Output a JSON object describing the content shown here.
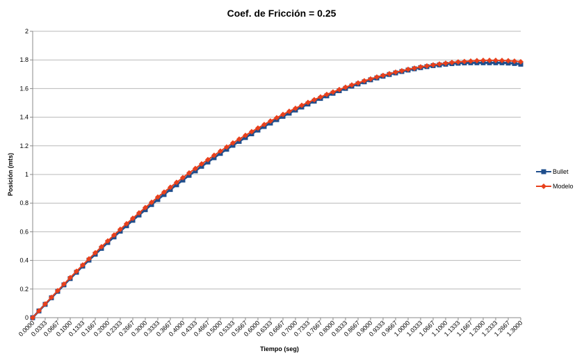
{
  "chart_data": {
    "type": "line",
    "title": "Coef. de Fricción = 0.25",
    "xlabel": "Tiempo (seg)",
    "ylabel": "Posición (mts)",
    "ylim": [
      0,
      2
    ],
    "yticks": [
      "0",
      "0.2",
      "0.4",
      "0.6",
      "0.8",
      "1",
      "1.2",
      "1.4",
      "1.6",
      "1.8",
      "2"
    ],
    "grid": "horizontal",
    "legend_position": "right",
    "x": [
      "0.0000",
      "0.0167",
      "0.0333",
      "0.0500",
      "0.0667",
      "0.0833",
      "0.1000",
      "0.1167",
      "0.1333",
      "0.1500",
      "0.1667",
      "0.1833",
      "0.2000",
      "0.2167",
      "0.2333",
      "0.2500",
      "0.2667",
      "0.2833",
      "0.3000",
      "0.3167",
      "0.3333",
      "0.3500",
      "0.3667",
      "0.3833",
      "0.4000",
      "0.4167",
      "0.4333",
      "0.4500",
      "0.4667",
      "0.4833",
      "0.5000",
      "0.5167",
      "0.5333",
      "0.5500",
      "0.5667",
      "0.5833",
      "0.6000",
      "0.6167",
      "0.6333",
      "0.6500",
      "0.6667",
      "0.6833",
      "0.7000",
      "0.7167",
      "0.7333",
      "0.7500",
      "0.7667",
      "0.7833",
      "0.8000",
      "0.8167",
      "0.8333",
      "0.8500",
      "0.8667",
      "0.8833",
      "0.9000",
      "0.9167",
      "0.9333",
      "0.9500",
      "0.9667",
      "0.9833",
      "1.0000",
      "1.0167",
      "1.0333",
      "1.0500",
      "1.0667",
      "1.0833",
      "1.1000",
      "1.1167",
      "1.1333",
      "1.1500",
      "1.1667",
      "1.1833",
      "1.2000",
      "1.2167",
      "1.2333",
      "1.2500",
      "1.2667",
      "1.2833",
      "1.3000"
    ],
    "xtick_labels_shown": [
      "0.0000",
      "0.0333",
      "0.0667",
      "0.1000",
      "0.1333",
      "0.1667",
      "0.2000",
      "0.2333",
      "0.2667",
      "0.3000",
      "0.3333",
      "0.3667",
      "0.4000",
      "0.4333",
      "0.4667",
      "0.5000",
      "0.5333",
      "0.5667",
      "0.6000",
      "0.6333",
      "0.6667",
      "0.7000",
      "0.7333",
      "0.7667",
      "0.8000",
      "0.8333",
      "0.8667",
      "0.9000",
      "0.9333",
      "0.9667",
      "1.0000",
      "1.0333",
      "1.0667",
      "1.1000",
      "1.1333",
      "1.1667",
      "1.2000",
      "1.2333",
      "1.2667",
      "1.3000"
    ],
    "series": [
      {
        "name": "Bullet",
        "color": "#1f4e8c",
        "marker": "square",
        "values": [
          0.0,
          0.047,
          0.093,
          0.139,
          0.184,
          0.229,
          0.273,
          0.317,
          0.36,
          0.402,
          0.443,
          0.484,
          0.525,
          0.564,
          0.604,
          0.642,
          0.68,
          0.717,
          0.754,
          0.79,
          0.825,
          0.86,
          0.895,
          0.928,
          0.961,
          0.994,
          1.025,
          1.057,
          1.087,
          1.117,
          1.147,
          1.176,
          1.204,
          1.231,
          1.258,
          1.284,
          1.31,
          1.335,
          1.359,
          1.383,
          1.406,
          1.428,
          1.45,
          1.471,
          1.492,
          1.512,
          1.531,
          1.549,
          1.567,
          1.585,
          1.601,
          1.617,
          1.632,
          1.647,
          1.661,
          1.674,
          1.686,
          1.698,
          1.709,
          1.719,
          1.729,
          1.738,
          1.746,
          1.753,
          1.76,
          1.765,
          1.77,
          1.774,
          1.777,
          1.779,
          1.78,
          1.78,
          1.78,
          1.78,
          1.78,
          1.78,
          1.778,
          1.775,
          1.77
        ]
      },
      {
        "name": "Modelo",
        "color": "#e8401c",
        "marker": "diamond",
        "values": [
          0.0,
          0.048,
          0.096,
          0.142,
          0.189,
          0.234,
          0.28,
          0.324,
          0.368,
          0.411,
          0.453,
          0.495,
          0.536,
          0.577,
          0.617,
          0.656,
          0.694,
          0.732,
          0.769,
          0.806,
          0.842,
          0.877,
          0.911,
          0.945,
          0.978,
          1.011,
          1.042,
          1.074,
          1.104,
          1.134,
          1.163,
          1.192,
          1.22,
          1.247,
          1.273,
          1.299,
          1.324,
          1.349,
          1.373,
          1.396,
          1.419,
          1.441,
          1.462,
          1.483,
          1.503,
          1.522,
          1.541,
          1.559,
          1.576,
          1.593,
          1.609,
          1.625,
          1.639,
          1.654,
          1.667,
          1.68,
          1.692,
          1.703,
          1.714,
          1.724,
          1.734,
          1.742,
          1.751,
          1.758,
          1.765,
          1.771,
          1.777,
          1.782,
          1.786,
          1.789,
          1.792,
          1.795,
          1.797,
          1.797,
          1.797,
          1.796,
          1.794,
          1.791,
          1.787
        ]
      }
    ]
  }
}
